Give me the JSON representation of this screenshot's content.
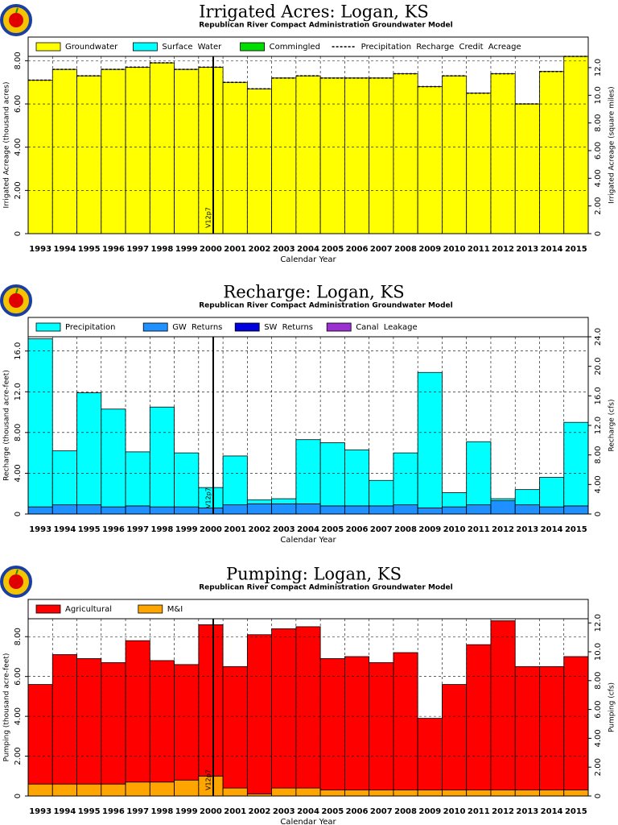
{
  "chart_data": [
    {
      "type": "bar",
      "title": "Irrigated Acres: Logan, KS",
      "subtitle": "Republican River Compact Administration Groundwater Model",
      "xlabel": "Calendar Year",
      "ylabel": "Irrigated Acreage (thousand acres)",
      "y2label": "Irrigated Acreage (square miles)",
      "annotation": "V12p7",
      "stacked": true,
      "grid": true,
      "categories": [
        "1993",
        "1994",
        "1995",
        "1996",
        "1997",
        "1998",
        "1999",
        "2000",
        "2001",
        "2002",
        "2003",
        "2004",
        "2005",
        "2006",
        "2007",
        "2008",
        "2009",
        "2010",
        "2011",
        "2012",
        "2013",
        "2014",
        "2015"
      ],
      "series": [
        {
          "name": "Groundwater",
          "color": "#ffff00",
          "values": [
            7.1,
            7.6,
            7.3,
            7.6,
            7.7,
            7.9,
            7.6,
            7.7,
            7.0,
            6.7,
            7.2,
            7.3,
            7.2,
            7.2,
            7.2,
            7.4,
            6.8,
            7.3,
            6.5,
            7.4,
            6.0,
            7.5,
            8.2
          ]
        },
        {
          "name": "Surface Water",
          "color": "#00ffff",
          "values": [
            0,
            0,
            0,
            0,
            0,
            0,
            0,
            0,
            0,
            0,
            0,
            0,
            0,
            0,
            0,
            0,
            0,
            0,
            0,
            0,
            0,
            0,
            0
          ]
        },
        {
          "name": "Commingled",
          "color": "#00dd00",
          "values": [
            0,
            0,
            0,
            0,
            0,
            0,
            0,
            0,
            0,
            0,
            0,
            0,
            0,
            0,
            0,
            0,
            0,
            0,
            0,
            0,
            0,
            0,
            0
          ]
        },
        {
          "name": "Precipitation Recharge Credit Acreage",
          "color": "#000000",
          "type": "line",
          "values": [
            7.1,
            7.6,
            7.3,
            7.6,
            7.7,
            7.9,
            7.6,
            7.7,
            7.0,
            6.7,
            7.2,
            7.3,
            7.2,
            7.2,
            7.2,
            7.4,
            6.8,
            7.3,
            6.5,
            7.4,
            6.0,
            7.5,
            8.2
          ]
        }
      ],
      "ylim": [
        0,
        8.2
      ],
      "yticks": [
        0,
        {
          "value": 2,
          "label": "2.00"
        },
        {
          "value": 4,
          "label": "4.00"
        },
        {
          "value": 6,
          "label": "6.00"
        },
        {
          "value": 8,
          "label": "8.00"
        }
      ],
      "y2lim": [
        0,
        12.81
      ],
      "y2ticks": [
        0,
        {
          "value": 2,
          "label": "2.00"
        },
        {
          "value": 4,
          "label": "4.00"
        },
        {
          "value": 6,
          "label": "6.00"
        },
        {
          "value": 8,
          "label": "8.00"
        },
        {
          "value": 10,
          "label": "10.0"
        },
        {
          "value": 12,
          "label": "12.0"
        }
      ]
    },
    {
      "type": "bar",
      "title": "Recharge: Logan, KS",
      "subtitle": "Republican River Compact Administration Groundwater Model",
      "xlabel": "Calendar Year",
      "ylabel": "Recharge (thousand acre-feet)",
      "y2label": "Recharge (cfs)",
      "annotation": "V12p7",
      "stacked": true,
      "grid": true,
      "categories": [
        "1993",
        "1994",
        "1995",
        "1996",
        "1997",
        "1998",
        "1999",
        "2000",
        "2001",
        "2002",
        "2003",
        "2004",
        "2005",
        "2006",
        "2007",
        "2008",
        "2009",
        "2010",
        "2011",
        "2012",
        "2013",
        "2014",
        "2015"
      ],
      "series": [
        {
          "name": "GW Returns",
          "color": "#1e90ff",
          "values": [
            0.7,
            0.9,
            0.9,
            0.7,
            0.8,
            0.7,
            0.7,
            0.6,
            0.9,
            1.0,
            1.0,
            1.0,
            0.8,
            0.8,
            0.8,
            0.9,
            0.6,
            0.7,
            0.9,
            1.3,
            0.9,
            0.7,
            0.8
          ]
        },
        {
          "name": "SW Returns",
          "color": "#0000dd",
          "values": [
            0,
            0,
            0,
            0,
            0,
            0,
            0,
            0,
            0,
            0,
            0,
            0,
            0,
            0,
            0,
            0,
            0,
            0,
            0,
            0,
            0,
            0,
            0
          ]
        },
        {
          "name": "Canal Leakage",
          "color": "#9b30d0",
          "values": [
            0,
            0,
            0,
            0,
            0,
            0,
            0,
            0,
            0,
            0,
            0,
            0,
            0,
            0,
            0,
            0,
            0,
            0,
            0,
            0,
            0,
            0,
            0
          ]
        },
        {
          "name": "Precipitation",
          "color": "#00ffff",
          "values": [
            16.5,
            5.3,
            11.0,
            9.6,
            5.3,
            9.8,
            5.3,
            2.0,
            4.8,
            0.4,
            0.5,
            6.3,
            6.2,
            5.5,
            2.5,
            5.1,
            13.3,
            1.4,
            6.2,
            0.2,
            1.5,
            2.9,
            8.2
          ]
        }
      ],
      "legend_order": [
        3,
        0,
        1,
        2
      ],
      "ylim": [
        0,
        17.4
      ],
      "yticks": [
        0,
        {
          "value": 4,
          "label": "4.00"
        },
        {
          "value": 8,
          "label": "8.00"
        },
        {
          "value": 12,
          "label": "12.0"
        },
        {
          "value": 16,
          "label": "16.0"
        }
      ],
      "y2lim": [
        0,
        24.0
      ],
      "y2ticks": [
        0,
        {
          "value": 4,
          "label": "4.00"
        },
        {
          "value": 8,
          "label": "8.00"
        },
        {
          "value": 12,
          "label": "12.0"
        },
        {
          "value": 16,
          "label": "16.0"
        },
        {
          "value": 20,
          "label": "20.0"
        },
        {
          "value": 24,
          "label": "24.0"
        }
      ]
    },
    {
      "type": "bar",
      "title": "Pumping: Logan, KS",
      "subtitle": "Republican River Compact Administration Groundwater Model",
      "xlabel": "Calendar Year",
      "ylabel": "Pumping (thousand acre-feet)",
      "y2label": "Pumping (cfs)",
      "annotation": "V12p7",
      "stacked": true,
      "grid": true,
      "categories": [
        "1993",
        "1994",
        "1995",
        "1996",
        "1997",
        "1998",
        "1999",
        "2000",
        "2001",
        "2002",
        "2003",
        "2004",
        "2005",
        "2006",
        "2007",
        "2008",
        "2009",
        "2010",
        "2011",
        "2012",
        "2013",
        "2014",
        "2015"
      ],
      "series": [
        {
          "name": "M&I",
          "color": "#ffa500",
          "values": [
            0.6,
            0.6,
            0.6,
            0.6,
            0.7,
            0.7,
            0.8,
            1.0,
            0.4,
            0.1,
            0.4,
            0.4,
            0.3,
            0.3,
            0.3,
            0.3,
            0.3,
            0.3,
            0.3,
            0.3,
            0.3,
            0.3,
            0.3
          ]
        },
        {
          "name": "Agricultural",
          "color": "#ff0000",
          "values": [
            5.0,
            6.5,
            6.3,
            6.1,
            7.1,
            6.1,
            5.8,
            7.6,
            6.1,
            8.0,
            8.0,
            8.1,
            6.6,
            6.7,
            6.4,
            6.9,
            3.6,
            5.3,
            7.3,
            8.5,
            6.2,
            6.2,
            6.7
          ]
        }
      ],
      "legend_order": [
        1,
        0
      ],
      "ylim": [
        0,
        8.9
      ],
      "yticks": [
        0,
        {
          "value": 2,
          "label": "2.00"
        },
        {
          "value": 4,
          "label": "4.00"
        },
        {
          "value": 6,
          "label": "6.00"
        },
        {
          "value": 8,
          "label": "8.00"
        }
      ],
      "y2lim": [
        0,
        12.29
      ],
      "y2ticks": [
        0,
        {
          "value": 2,
          "label": "2.00"
        },
        {
          "value": 4,
          "label": "4.00"
        },
        {
          "value": 6,
          "label": "6.00"
        },
        {
          "value": 8,
          "label": "8.00"
        },
        {
          "value": 10,
          "label": "10.0"
        },
        {
          "value": 12,
          "label": "12.0"
        }
      ]
    }
  ]
}
